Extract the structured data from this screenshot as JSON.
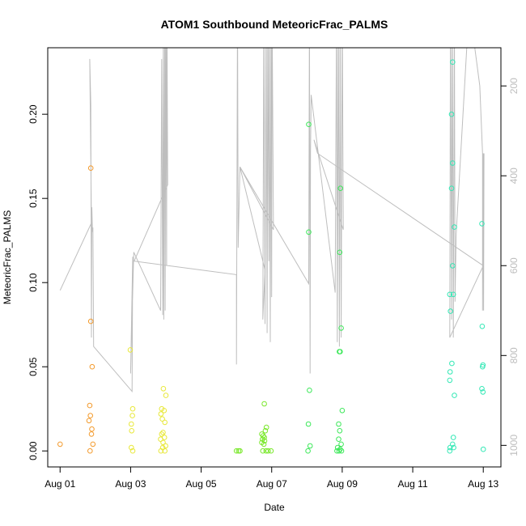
{
  "chart_data": {
    "type": "scatter",
    "title": "ATOM1 Southbound MeteoricFrac_PALMS",
    "xlabel": "Date",
    "ylabel": "MeteoricFrac_PALMS",
    "x_ticks": [
      "Aug 01",
      "Aug 03",
      "Aug 05",
      "Aug 07",
      "Aug 09",
      "Aug 11",
      "Aug 13"
    ],
    "x_tick_days": [
      1,
      3,
      5,
      7,
      9,
      11,
      13
    ],
    "xlim_days": [
      0.65,
      13.5
    ],
    "ylim": [
      -0.0095,
      0.2395
    ],
    "y_ticks": [
      0.0,
      0.05,
      0.1,
      0.15,
      0.2
    ],
    "y_tick_labels": [
      "0.00",
      "0.05",
      "0.10",
      "0.15",
      "0.20"
    ],
    "y2_ticks": [
      200,
      400,
      600,
      800,
      1000
    ],
    "y2lim": [
      1048,
      115
    ],
    "y2_reversed": true,
    "grid": false,
    "line_color": "#bebebe",
    "series": [
      {
        "color": "#f39a2c",
        "points": [
          [
            1.0,
            0.004
          ],
          [
            1.87,
            0.168
          ],
          [
            1.87,
            0.077
          ],
          [
            1.91,
            0.05
          ],
          [
            1.84,
            0.027
          ],
          [
            1.86,
            0.021
          ],
          [
            1.82,
            0.018
          ],
          [
            1.9,
            0.013
          ],
          [
            1.89,
            0.01
          ],
          [
            1.93,
            0.004
          ],
          [
            1.85,
            0.0
          ]
        ]
      },
      {
        "color": "#e8e83a",
        "points": [
          [
            2.99,
            0.06
          ],
          [
            3.06,
            0.025
          ],
          [
            3.05,
            0.021
          ],
          [
            3.02,
            0.016
          ],
          [
            3.03,
            0.012
          ],
          [
            3.02,
            0.002
          ],
          [
            3.06,
            0.0
          ],
          [
            3.93,
            0.037
          ],
          [
            4.0,
            0.033
          ],
          [
            3.88,
            0.025
          ],
          [
            3.95,
            0.024
          ],
          [
            3.86,
            0.022
          ],
          [
            3.9,
            0.019
          ],
          [
            3.97,
            0.017
          ],
          [
            3.92,
            0.011
          ],
          [
            3.88,
            0.01
          ],
          [
            3.96,
            0.008
          ],
          [
            3.85,
            0.007
          ],
          [
            3.92,
            0.005
          ],
          [
            3.99,
            0.003
          ],
          [
            3.91,
            0.002
          ],
          [
            3.86,
            0.0
          ],
          [
            3.97,
            0.0
          ]
        ]
      },
      {
        "color": "#7ae82c",
        "points": [
          [
            6.0,
            0.0
          ],
          [
            6.06,
            0.0
          ],
          [
            6.1,
            0.0
          ],
          [
            6.79,
            0.028
          ],
          [
            6.85,
            0.014
          ],
          [
            6.82,
            0.012
          ],
          [
            6.72,
            0.01
          ],
          [
            6.76,
            0.009
          ],
          [
            6.79,
            0.008
          ],
          [
            6.74,
            0.007
          ],
          [
            6.8,
            0.006
          ],
          [
            6.72,
            0.005
          ],
          [
            6.78,
            0.004
          ],
          [
            6.75,
            0.0
          ],
          [
            6.84,
            0.0
          ],
          [
            6.9,
            0.0
          ],
          [
            6.98,
            0.0
          ]
        ]
      },
      {
        "color": "#3de85a",
        "points": [
          [
            8.05,
            0.194
          ],
          [
            8.05,
            0.13
          ],
          [
            8.07,
            0.036
          ],
          [
            8.04,
            0.016
          ],
          [
            8.09,
            0.003
          ],
          [
            8.03,
            0.0
          ],
          [
            8.95,
            0.156
          ],
          [
            8.93,
            0.118
          ],
          [
            8.97,
            0.073
          ],
          [
            8.92,
            0.059
          ],
          [
            8.94,
            0.059
          ],
          [
            9.0,
            0.024
          ],
          [
            8.9,
            0.016
          ],
          [
            8.93,
            0.012
          ],
          [
            8.9,
            0.007
          ],
          [
            8.97,
            0.004
          ],
          [
            8.87,
            0.002
          ],
          [
            8.94,
            0.001
          ],
          [
            8.85,
            0.0
          ],
          [
            8.91,
            0.0
          ],
          [
            8.98,
            0.0
          ]
        ]
      },
      {
        "color": "#33e8b5",
        "points": [
          [
            12.13,
            0.231
          ],
          [
            12.1,
            0.2
          ],
          [
            12.13,
            0.171
          ],
          [
            12.1,
            0.156
          ],
          [
            12.18,
            0.133
          ],
          [
            12.13,
            0.11
          ],
          [
            12.05,
            0.093
          ],
          [
            12.15,
            0.093
          ],
          [
            12.07,
            0.083
          ],
          [
            12.96,
            0.135
          ],
          [
            12.97,
            0.074
          ],
          [
            12.11,
            0.052
          ],
          [
            12.06,
            0.047
          ],
          [
            12.05,
            0.042
          ],
          [
            12.18,
            0.033
          ],
          [
            12.99,
            0.051
          ],
          [
            12.98,
            0.05
          ],
          [
            12.96,
            0.037
          ],
          [
            12.99,
            0.035
          ],
          [
            12.15,
            0.008
          ],
          [
            12.13,
            0.004
          ],
          [
            12.06,
            0.002
          ],
          [
            12.16,
            0.002
          ],
          [
            12.05,
            0.0
          ],
          [
            13.0,
            0.001
          ]
        ]
      }
    ],
    "secondary_line": [
      [
        1.0,
        655
      ],
      [
        1.89,
        505
      ],
      [
        1.84,
        140
      ],
      [
        1.87,
        240
      ],
      [
        1.89,
        760
      ],
      [
        1.9,
        470
      ],
      [
        1.92,
        525
      ],
      [
        1.93,
        515
      ],
      [
        1.95,
        780
      ],
      [
        3.04,
        880
      ],
      [
        3.06,
        580
      ],
      [
        3.0,
        840
      ],
      [
        3.09,
        570
      ],
      [
        3.85,
        700
      ],
      [
        3.88,
        140
      ],
      [
        3.91,
        710
      ],
      [
        3.93,
        20
      ],
      [
        3.94,
        720
      ],
      [
        3.97,
        20
      ],
      [
        3.98,
        700
      ],
      [
        4.0,
        20
      ],
      [
        4.02,
        600
      ],
      [
        4.03,
        20
      ],
      [
        4.05,
        420
      ],
      [
        3.1,
        590
      ],
      [
        6.0,
        620
      ],
      [
        6.0,
        820
      ],
      [
        6.03,
        20
      ],
      [
        6.05,
        560
      ],
      [
        6.1,
        380
      ],
      [
        6.81,
        610
      ],
      [
        6.75,
        720
      ],
      [
        6.78,
        20
      ],
      [
        6.81,
        730
      ],
      [
        6.84,
        20
      ],
      [
        6.87,
        750
      ],
      [
        6.89,
        20
      ],
      [
        6.92,
        590
      ],
      [
        6.93,
        20
      ],
      [
        6.96,
        770
      ],
      [
        6.98,
        20
      ],
      [
        7.0,
        670
      ],
      [
        7.01,
        20
      ],
      [
        7.05,
        520
      ],
      [
        6.1,
        380
      ],
      [
        8.05,
        640
      ],
      [
        8.07,
        20
      ],
      [
        8.09,
        840
      ],
      [
        8.1,
        350
      ],
      [
        8.12,
        220
      ],
      [
        8.8,
        660
      ],
      [
        8.84,
        20
      ],
      [
        8.86,
        770
      ],
      [
        8.89,
        20
      ],
      [
        8.92,
        780
      ],
      [
        8.94,
        20
      ],
      [
        8.97,
        760
      ],
      [
        9.0,
        20
      ],
      [
        9.03,
        520
      ],
      [
        8.2,
        320
      ],
      [
        8.3,
        350
      ],
      [
        13.0,
        600
      ],
      [
        12.05,
        760
      ],
      [
        12.07,
        20
      ],
      [
        12.1,
        720
      ],
      [
        12.12,
        20
      ],
      [
        12.15,
        760
      ],
      [
        12.18,
        20
      ],
      [
        12.2,
        680
      ],
      [
        12.23,
        530
      ],
      [
        12.6,
        20
      ],
      [
        12.9,
        200
      ],
      [
        12.98,
        350
      ],
      [
        12.98,
        700
      ],
      [
        13.0,
        350
      ],
      [
        13.01,
        700
      ],
      [
        13.02,
        350
      ]
    ]
  }
}
